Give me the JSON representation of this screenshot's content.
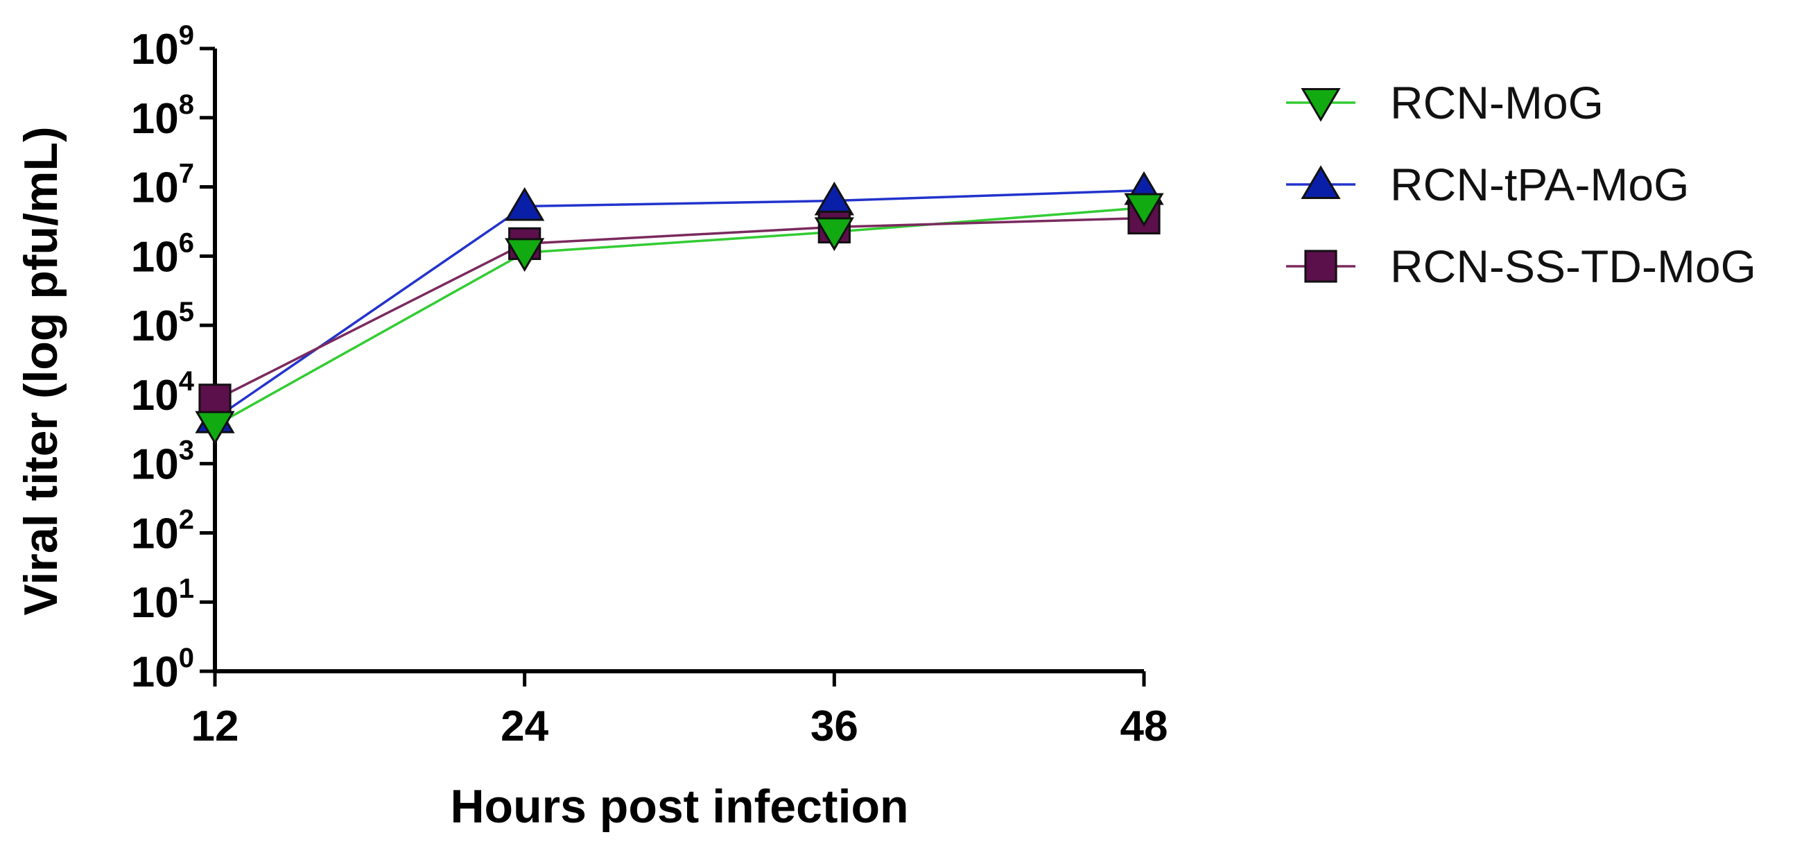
{
  "chart_data": {
    "type": "line",
    "title": "",
    "xlabel": "Hours post infection",
    "ylabel": "Viral titer (log pfu/mL)",
    "yscale": "log10",
    "ylim": [
      0,
      9
    ],
    "x": [
      12,
      24,
      36,
      48
    ],
    "x_tick_labels": [
      "12",
      "24",
      "36",
      "48"
    ],
    "y_tick_labels": [
      {
        "base": "10",
        "exp": "0"
      },
      {
        "base": "10",
        "exp": "1"
      },
      {
        "base": "10",
        "exp": "2"
      },
      {
        "base": "10",
        "exp": "3"
      },
      {
        "base": "10",
        "exp": "4"
      },
      {
        "base": "10",
        "exp": "5"
      },
      {
        "base": "10",
        "exp": "6"
      },
      {
        "base": "10",
        "exp": "7"
      },
      {
        "base": "10",
        "exp": "8"
      },
      {
        "base": "10",
        "exp": "9"
      }
    ],
    "legend_position": "top-right",
    "series": [
      {
        "name": "RCN-MoG",
        "marker": "triangle-down",
        "line_color": "#33cc33",
        "marker_color": "#11aa11",
        "log10_values": [
          3.55,
          6.05,
          6.35,
          6.7
        ]
      },
      {
        "name": "RCN-tPA-MoG",
        "marker": "triangle-up",
        "line_color": "#2233cc",
        "marker_color": "#0a1fa8",
        "log10_values": [
          3.65,
          6.72,
          6.8,
          6.95
        ]
      },
      {
        "name": "RCN-SS-TD-MoG",
        "marker": "square",
        "line_color": "#7a2a5e",
        "marker_color": "#5b0f4b",
        "log10_values": [
          3.92,
          6.18,
          6.42,
          6.55
        ]
      }
    ]
  }
}
